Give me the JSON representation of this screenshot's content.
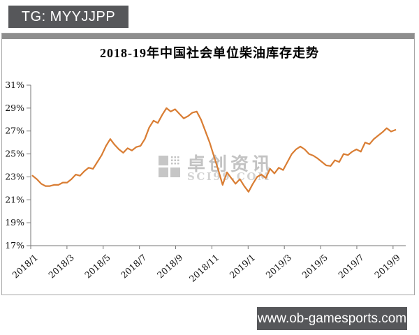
{
  "header_badge": {
    "label": "TG: MYYJJPP"
  },
  "footer_badge": {
    "label": "www.ob-gamesports.com"
  },
  "watermark": {
    "name": "卓创资讯",
    "site": "SCI99.COM"
  },
  "colors": {
    "line": "#D97D33",
    "badge_bg": "#56575A",
    "card_top_bar": "#8E8E8E",
    "axis": "#777777",
    "tick_text": "#111111",
    "watermark_gray": "#C6C6C6"
  },
  "chart_data": {
    "type": "line",
    "title": "2018-19年中国社会单位柴油库存走势",
    "xlabel": "",
    "ylabel": "",
    "x_tick_labels": [
      "2018/1",
      "2018/3",
      "2018/5",
      "2018/7",
      "2018/9",
      "2018/11",
      "2019/1",
      "2019/3",
      "2019/5",
      "2019/7",
      "2019/9"
    ],
    "y_tick_labels": [
      "31%",
      "29%",
      "27%",
      "25%",
      "23%",
      "21%",
      "19%",
      "17%"
    ],
    "ylim": [
      17,
      31
    ],
    "y_tick_step_percent": 2,
    "x_months_per_tick": 2,
    "x_axis_month_range": [
      0,
      20.7
    ],
    "grid": false,
    "legend": false,
    "series": [
      {
        "x_month_range": [
          0.1,
          20.13
        ],
        "color": "#D97D33",
        "values": [
          23.1,
          22.8,
          22.4,
          22.2,
          22.2,
          22.3,
          22.3,
          22.5,
          22.5,
          22.8,
          23.2,
          23.1,
          23.5,
          23.8,
          23.7,
          24.3,
          24.9,
          25.7,
          26.3,
          25.8,
          25.4,
          25.1,
          25.5,
          25.3,
          25.6,
          25.7,
          26.3,
          27.3,
          27.9,
          27.7,
          28.4,
          29.0,
          28.7,
          28.9,
          28.5,
          28.1,
          28.3,
          28.6,
          28.7,
          28.0,
          27.0,
          26.0,
          24.8,
          23.6,
          22.3,
          23.4,
          22.9,
          22.4,
          22.8,
          22.2,
          21.7,
          22.4,
          23.0,
          23.2,
          22.9,
          23.7,
          23.3,
          23.8,
          23.6,
          24.3,
          25.0,
          25.4,
          25.65,
          25.4,
          25.0,
          24.85,
          24.6,
          24.3,
          24.0,
          23.95,
          24.45,
          24.3,
          25.0,
          24.9,
          25.2,
          25.4,
          25.2,
          26.0,
          25.85,
          26.3,
          26.6,
          26.9,
          27.25,
          26.95,
          27.1
        ]
      }
    ]
  }
}
